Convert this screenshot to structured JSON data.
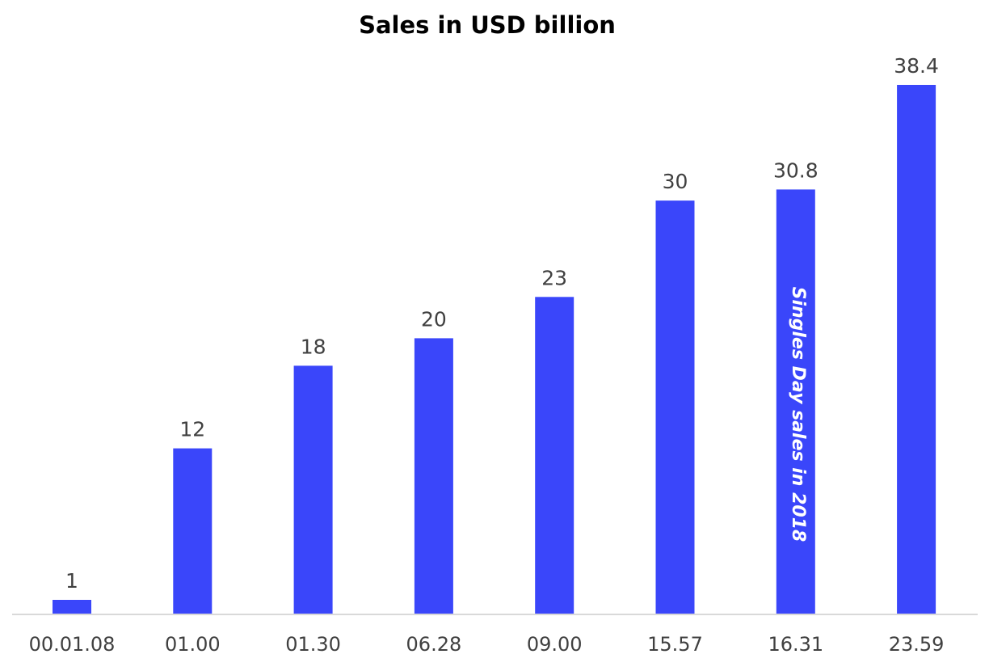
{
  "chart_data": {
    "type": "bar",
    "title": "Sales in USD billion",
    "xlabel": "",
    "ylabel": "",
    "categories": [
      "00.01.08",
      "01.00",
      "01.30",
      "06.28",
      "09.00",
      "15.57",
      "16.31",
      "23.59"
    ],
    "values": [
      1,
      12,
      18,
      20,
      23,
      30,
      30.8,
      38.4
    ],
    "value_labels": [
      "1",
      "12",
      "18",
      "20",
      "23",
      "30",
      "30.8",
      "38.4"
    ],
    "ylim": [
      0,
      38.4
    ],
    "grid": false,
    "legend": "none",
    "bar_color": "#3a46fa",
    "annotations": [
      {
        "category": "16.31",
        "text": "Singles Day sales in 2018",
        "placement": "inside-bar-vertical"
      }
    ]
  }
}
